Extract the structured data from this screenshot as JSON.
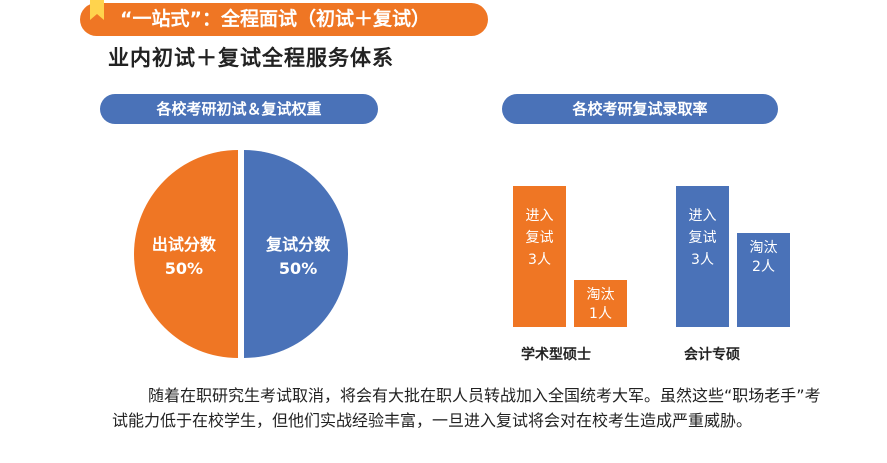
{
  "header": {
    "title": "“一站式”：全程面试（初试＋复试）",
    "subtitle": "业内初试＋复试全程服务体系"
  },
  "left_panel": {
    "title": "各校考研初试＆复试权重"
  },
  "right_panel": {
    "title": "各校考研复试录取率"
  },
  "colors": {
    "orange": "#ef7624",
    "blue": "#4a72b8"
  },
  "chart_data": [
    {
      "type": "pie",
      "title": "各校考研初试＆复试权重",
      "slices": [
        {
          "label": "出试分数",
          "value": 50,
          "value_label": "50%",
          "color": "#ef7624"
        },
        {
          "label": "复试分数",
          "value": 50,
          "value_label": "50%",
          "color": "#4a72b8"
        }
      ]
    },
    {
      "type": "bar",
      "title": "各校考研复试录取率",
      "categories": [
        "学术型硕士",
        "会计专硕"
      ],
      "series": [
        {
          "name": "进入复试",
          "values": [
            3,
            3
          ],
          "label_lines": [
            "进入",
            "复试"
          ],
          "unit": "人"
        },
        {
          "name": "淘汰",
          "values": [
            1,
            2
          ],
          "label_lines": [
            "淘汰"
          ],
          "unit": "人"
        }
      ]
    }
  ],
  "paragraph": "随着在职研究生考试取消，将会有大批在职人员转战加入全国统考大军。虽然这些“职场老手”考试能力低于在校学生，但他们实战经验丰富，一旦进入复试将会对在校考生造成严重威胁。"
}
